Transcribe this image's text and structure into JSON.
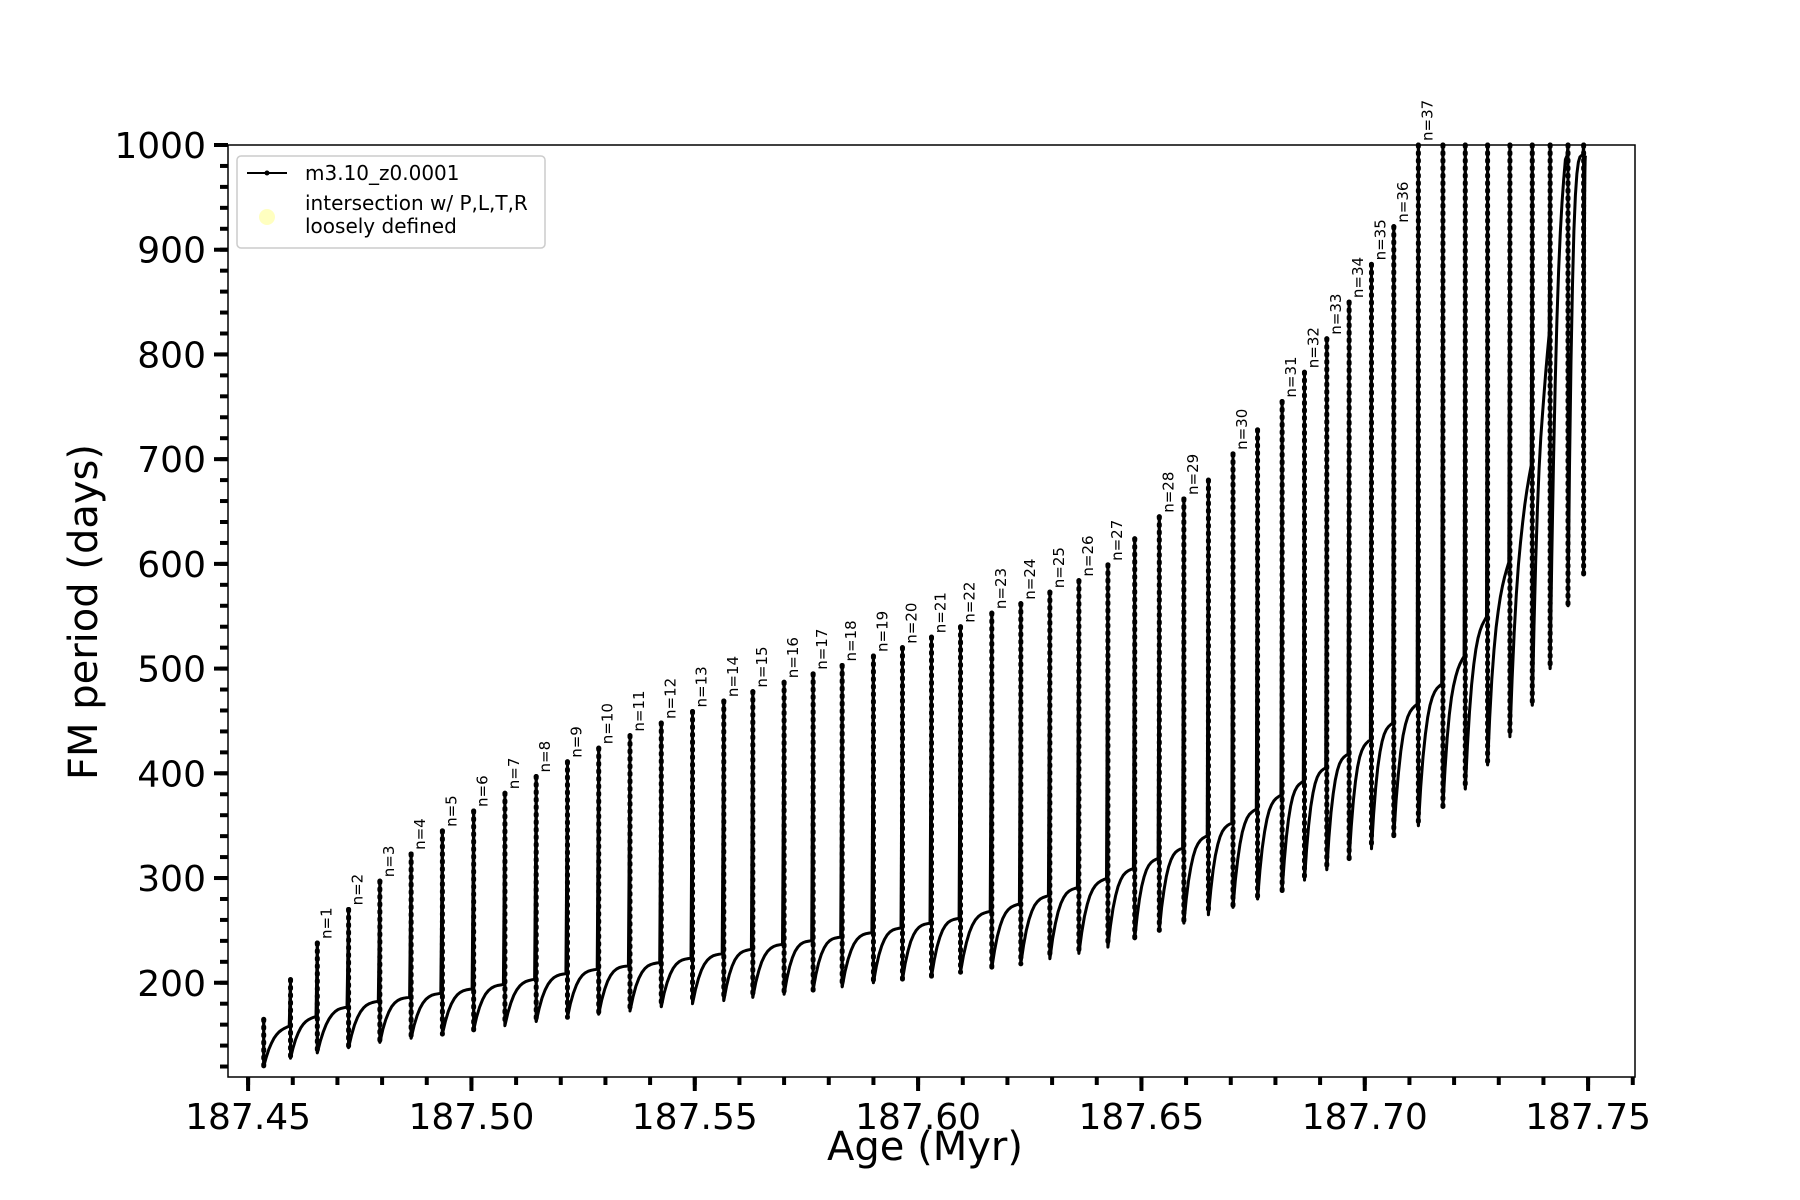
{
  "chart_data": {
    "type": "line",
    "title": "",
    "xlabel": "Age (Myr)",
    "ylabel": "FM period (days)",
    "xlim": [
      187.4455,
      187.7605
    ],
    "ylim": [
      110,
      1000
    ],
    "x_ticks": [
      187.45,
      187.5,
      187.55,
      187.6,
      187.65,
      187.7,
      187.75
    ],
    "x_tick_labels": [
      "187.45",
      "187.50",
      "187.55",
      "187.60",
      "187.65",
      "187.70",
      "187.75"
    ],
    "y_ticks": [
      200,
      300,
      400,
      500,
      600,
      700,
      800,
      900,
      1000
    ],
    "y_tick_labels": [
      "200",
      "300",
      "400",
      "500",
      "600",
      "700",
      "800",
      "900",
      "1000"
    ],
    "grid": false,
    "legend_position": "top-left",
    "series": [
      {
        "name": "m3.10_z0.0001",
        "color": "#000000",
        "marker": "dot",
        "baseline": {
          "x": [
            187.4535,
            187.46,
            187.47,
            187.48,
            187.49,
            187.5,
            187.51,
            187.52,
            187.53,
            187.54,
            187.55,
            187.56,
            187.57,
            187.58,
            187.59,
            187.6,
            187.61,
            187.62,
            187.63,
            187.64,
            187.65,
            187.66,
            187.67,
            187.68,
            187.69,
            187.7,
            187.71,
            187.72,
            187.73,
            187.735,
            187.74,
            187.745
          ],
          "y": [
            148,
            160,
            175,
            183,
            188,
            194,
            200,
            208,
            214,
            218,
            224,
            230,
            237,
            242,
            248,
            255,
            262,
            272,
            284,
            296,
            312,
            330,
            352,
            376,
            402,
            428,
            460,
            495,
            570,
            640,
            760,
            990
          ]
        },
        "pulses": [
          {
            "label": "",
            "x": 187.4535,
            "top": 165,
            "bottom": 120
          },
          {
            "label": "",
            "x": 187.4595,
            "top": 203,
            "bottom": 128
          },
          {
            "label": "n=1",
            "x": 187.4655,
            "top": 238,
            "bottom": 133
          },
          {
            "label": "n=2",
            "x": 187.4725,
            "top": 270,
            "bottom": 138
          },
          {
            "label": "n=3",
            "x": 187.4795,
            "top": 297,
            "bottom": 143
          },
          {
            "label": "n=4",
            "x": 187.4865,
            "top": 323,
            "bottom": 147
          },
          {
            "label": "n=5",
            "x": 187.4935,
            "top": 345,
            "bottom": 151
          },
          {
            "label": "n=6",
            "x": 187.5005,
            "top": 364,
            "bottom": 155
          },
          {
            "label": "n=7",
            "x": 187.5075,
            "top": 381,
            "bottom": 159
          },
          {
            "label": "n=8",
            "x": 187.5145,
            "top": 397,
            "bottom": 163
          },
          {
            "label": "n=9",
            "x": 187.5215,
            "top": 411,
            "bottom": 167
          },
          {
            "label": "n=10",
            "x": 187.5285,
            "top": 424,
            "bottom": 170
          },
          {
            "label": "n=11",
            "x": 187.5355,
            "top": 436,
            "bottom": 173
          },
          {
            "label": "n=12",
            "x": 187.5425,
            "top": 448,
            "bottom": 177
          },
          {
            "label": "n=13",
            "x": 187.5495,
            "top": 459,
            "bottom": 180
          },
          {
            "label": "n=14",
            "x": 187.5565,
            "top": 469,
            "bottom": 183
          },
          {
            "label": "n=15",
            "x": 187.563,
            "top": 478,
            "bottom": 186
          },
          {
            "label": "n=16",
            "x": 187.57,
            "top": 487,
            "bottom": 189
          },
          {
            "label": "n=17",
            "x": 187.5765,
            "top": 495,
            "bottom": 193
          },
          {
            "label": "n=18",
            "x": 187.583,
            "top": 503,
            "bottom": 196
          },
          {
            "label": "n=19",
            "x": 187.59,
            "top": 512,
            "bottom": 200
          },
          {
            "label": "n=20",
            "x": 187.5965,
            "top": 520,
            "bottom": 203
          },
          {
            "label": "n=21",
            "x": 187.603,
            "top": 530,
            "bottom": 206
          },
          {
            "label": "n=22",
            "x": 187.6095,
            "top": 540,
            "bottom": 210
          },
          {
            "label": "n=23",
            "x": 187.6165,
            "top": 553,
            "bottom": 214
          },
          {
            "label": "n=24",
            "x": 187.623,
            "top": 562,
            "bottom": 218
          },
          {
            "label": "n=25",
            "x": 187.6295,
            "top": 573,
            "bottom": 223
          },
          {
            "label": "n=26",
            "x": 187.636,
            "top": 584,
            "bottom": 228
          },
          {
            "label": "n=27",
            "x": 187.6425,
            "top": 599,
            "bottom": 234
          },
          {
            "label": "",
            "x": 187.6485,
            "top": 624,
            "bottom": 242
          },
          {
            "label": "n=28",
            "x": 187.654,
            "top": 645,
            "bottom": 250
          },
          {
            "label": "n=29",
            "x": 187.6595,
            "top": 662,
            "bottom": 257
          },
          {
            "label": "",
            "x": 187.665,
            "top": 680,
            "bottom": 265
          },
          {
            "label": "n=30",
            "x": 187.6705,
            "top": 705,
            "bottom": 272
          },
          {
            "label": "",
            "x": 187.676,
            "top": 728,
            "bottom": 280
          },
          {
            "label": "n=31",
            "x": 187.6815,
            "top": 755,
            "bottom": 288
          },
          {
            "label": "n=32",
            "x": 187.6865,
            "top": 783,
            "bottom": 298
          },
          {
            "label": "n=33",
            "x": 187.6915,
            "top": 815,
            "bottom": 308
          },
          {
            "label": "n=34",
            "x": 187.6965,
            "top": 850,
            "bottom": 318
          },
          {
            "label": "n=35",
            "x": 187.7015,
            "top": 886,
            "bottom": 328
          },
          {
            "label": "n=36",
            "x": 187.7065,
            "top": 922,
            "bottom": 340
          },
          {
            "label": "n=37",
            "x": 187.712,
            "top": 1000,
            "bottom": 350
          },
          {
            "label": "",
            "x": 187.7175,
            "top": 1000,
            "bottom": 368
          },
          {
            "label": "",
            "x": 187.7225,
            "top": 1000,
            "bottom": 385
          },
          {
            "label": "",
            "x": 187.7275,
            "top": 1000,
            "bottom": 408
          },
          {
            "label": "",
            "x": 187.7325,
            "top": 1000,
            "bottom": 435
          },
          {
            "label": "",
            "x": 187.7375,
            "top": 1000,
            "bottom": 465
          },
          {
            "label": "",
            "x": 187.7415,
            "top": 1000,
            "bottom": 500
          },
          {
            "label": "",
            "x": 187.7455,
            "top": 1000,
            "bottom": 560
          },
          {
            "label": "",
            "x": 187.749,
            "top": 1000,
            "bottom": 590
          }
        ]
      },
      {
        "name": "intersection w/ P,L,T,R\nloosely defined",
        "color": "#ffffb0",
        "marker": "circle"
      }
    ]
  }
}
